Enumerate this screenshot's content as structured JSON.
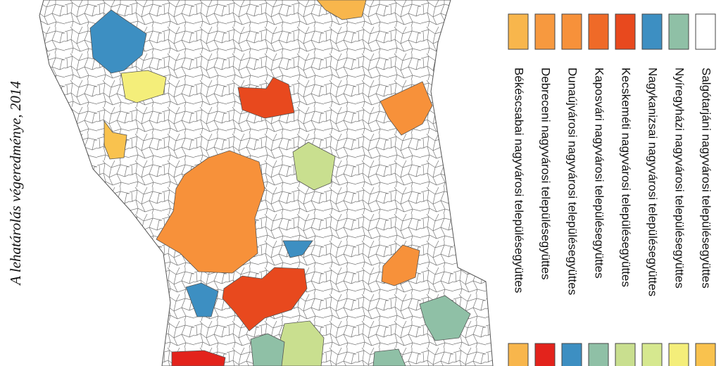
{
  "map": {
    "title": "A lehatárolás végeredménye, 2014",
    "legend": [
      {
        "label": "Békéscsabai nagyvárosi településegyüttes",
        "color": "#f8b64c"
      },
      {
        "label": "Debreceni nagyvárosi településegyüttes",
        "color": "#e3231c"
      },
      {
        "label": "Dunaújvárosi nagyvárosi településegyüttes",
        "color": "#3d8fc2"
      },
      {
        "label": "Kaposvári nagyvárosi településegyüttes",
        "color": "#8fc0a6"
      },
      {
        "label": "Kecskeméti nagyvárosi településegyüttes",
        "color": "#c9df8f"
      },
      {
        "label": "Nagykanizsai nagyvárosi településegyüttes",
        "color": "#d6e88f"
      },
      {
        "label": "Nyíregyházi nagyvárosi településegyüttes",
        "color": "#f4ee7a"
      },
      {
        "label": "Salgótarjáni nagyvárosi településegyüttes",
        "color": "#f9c24e"
      }
    ]
  }
}
